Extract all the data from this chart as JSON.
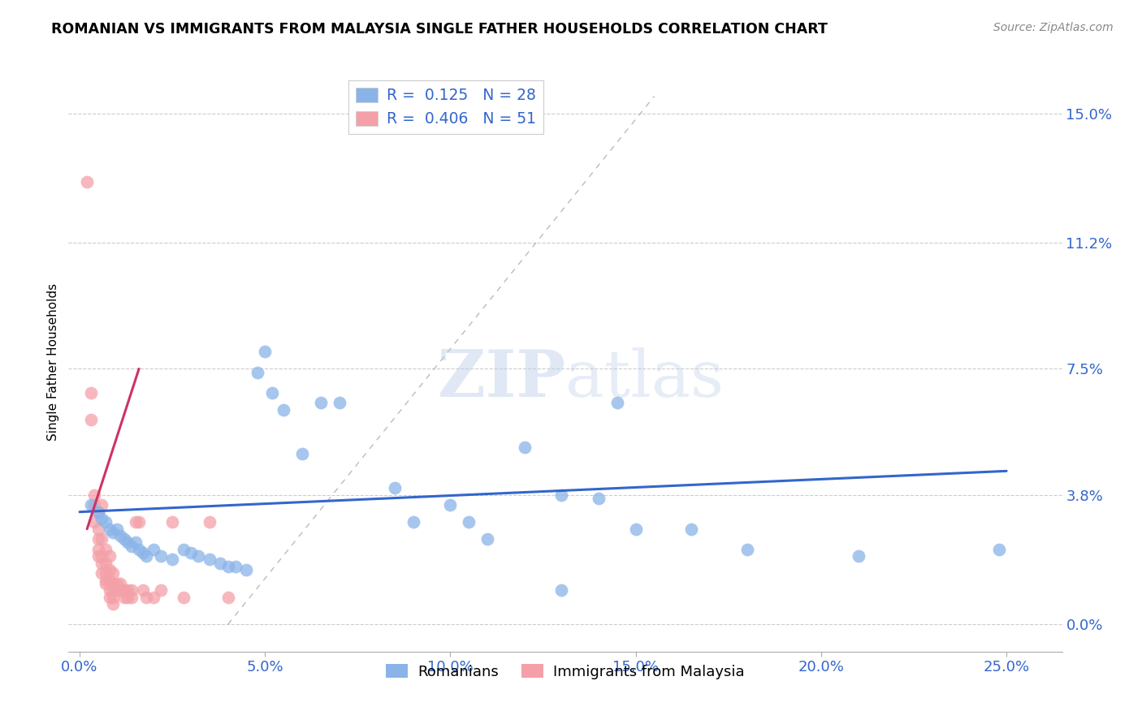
{
  "title": "ROMANIAN VS IMMIGRANTS FROM MALAYSIA SINGLE FATHER HOUSEHOLDS CORRELATION CHART",
  "source": "Source: ZipAtlas.com",
  "xlabel_ticks": [
    "0.0%",
    "5.0%",
    "10.0%",
    "15.0%",
    "20.0%",
    "25.0%"
  ],
  "xlabel_tick_vals": [
    0.0,
    0.05,
    0.1,
    0.15,
    0.2,
    0.25
  ],
  "ylabel": "Single Father Households",
  "ylabel_ticks": [
    "0.0%",
    "3.8%",
    "7.5%",
    "11.2%",
    "15.0%"
  ],
  "ylabel_tick_vals": [
    0.0,
    0.038,
    0.075,
    0.112,
    0.15
  ],
  "xlim": [
    -0.003,
    0.265
  ],
  "ylim": [
    -0.008,
    0.162
  ],
  "watermark_zip": "ZIP",
  "watermark_atlas": "atlas",
  "blue_color": "#8ab4e8",
  "pink_color": "#f4a0a8",
  "blue_line_color": "#3366cc",
  "pink_line_color": "#cc3366",
  "diagonal_color": "#cccccc",
  "blue_scatter": [
    [
      0.003,
      0.035
    ],
    [
      0.005,
      0.033
    ],
    [
      0.006,
      0.031
    ],
    [
      0.007,
      0.03
    ],
    [
      0.008,
      0.028
    ],
    [
      0.009,
      0.027
    ],
    [
      0.01,
      0.028
    ],
    [
      0.011,
      0.026
    ],
    [
      0.012,
      0.025
    ],
    [
      0.013,
      0.024
    ],
    [
      0.014,
      0.023
    ],
    [
      0.015,
      0.024
    ],
    [
      0.016,
      0.022
    ],
    [
      0.017,
      0.021
    ],
    [
      0.018,
      0.02
    ],
    [
      0.02,
      0.022
    ],
    [
      0.022,
      0.02
    ],
    [
      0.025,
      0.019
    ],
    [
      0.028,
      0.022
    ],
    [
      0.03,
      0.021
    ],
    [
      0.032,
      0.02
    ],
    [
      0.035,
      0.019
    ],
    [
      0.038,
      0.018
    ],
    [
      0.04,
      0.017
    ],
    [
      0.042,
      0.017
    ],
    [
      0.045,
      0.016
    ],
    [
      0.048,
      0.074
    ],
    [
      0.05,
      0.08
    ],
    [
      0.052,
      0.068
    ],
    [
      0.055,
      0.063
    ],
    [
      0.06,
      0.05
    ],
    [
      0.065,
      0.065
    ],
    [
      0.07,
      0.065
    ],
    [
      0.085,
      0.04
    ],
    [
      0.09,
      0.03
    ],
    [
      0.1,
      0.035
    ],
    [
      0.105,
      0.03
    ],
    [
      0.11,
      0.025
    ],
    [
      0.12,
      0.052
    ],
    [
      0.13,
      0.038
    ],
    [
      0.14,
      0.037
    ],
    [
      0.145,
      0.065
    ],
    [
      0.15,
      0.028
    ],
    [
      0.165,
      0.028
    ],
    [
      0.18,
      0.022
    ],
    [
      0.13,
      0.01
    ],
    [
      0.21,
      0.02
    ],
    [
      0.248,
      0.022
    ]
  ],
  "pink_scatter": [
    [
      0.002,
      0.13
    ],
    [
      0.003,
      0.068
    ],
    [
      0.003,
      0.06
    ],
    [
      0.004,
      0.038
    ],
    [
      0.004,
      0.035
    ],
    [
      0.004,
      0.03
    ],
    [
      0.005,
      0.033
    ],
    [
      0.005,
      0.028
    ],
    [
      0.005,
      0.025
    ],
    [
      0.005,
      0.022
    ],
    [
      0.005,
      0.02
    ],
    [
      0.006,
      0.035
    ],
    [
      0.006,
      0.025
    ],
    [
      0.006,
      0.02
    ],
    [
      0.006,
      0.018
    ],
    [
      0.006,
      0.015
    ],
    [
      0.007,
      0.022
    ],
    [
      0.007,
      0.018
    ],
    [
      0.007,
      0.015
    ],
    [
      0.007,
      0.013
    ],
    [
      0.007,
      0.012
    ],
    [
      0.008,
      0.02
    ],
    [
      0.008,
      0.016
    ],
    [
      0.008,
      0.013
    ],
    [
      0.008,
      0.01
    ],
    [
      0.008,
      0.008
    ],
    [
      0.009,
      0.015
    ],
    [
      0.009,
      0.012
    ],
    [
      0.009,
      0.01
    ],
    [
      0.009,
      0.008
    ],
    [
      0.009,
      0.006
    ],
    [
      0.01,
      0.012
    ],
    [
      0.01,
      0.01
    ],
    [
      0.011,
      0.012
    ],
    [
      0.011,
      0.01
    ],
    [
      0.012,
      0.01
    ],
    [
      0.012,
      0.008
    ],
    [
      0.013,
      0.01
    ],
    [
      0.013,
      0.008
    ],
    [
      0.014,
      0.01
    ],
    [
      0.014,
      0.008
    ],
    [
      0.015,
      0.03
    ],
    [
      0.016,
      0.03
    ],
    [
      0.017,
      0.01
    ],
    [
      0.018,
      0.008
    ],
    [
      0.02,
      0.008
    ],
    [
      0.022,
      0.01
    ],
    [
      0.025,
      0.03
    ],
    [
      0.028,
      0.008
    ],
    [
      0.035,
      0.03
    ],
    [
      0.04,
      0.008
    ]
  ],
  "blue_line_x": [
    0.0,
    0.25
  ],
  "blue_line_y": [
    0.033,
    0.045
  ],
  "pink_line_x": [
    0.002,
    0.016
  ],
  "pink_line_y": [
    0.028,
    0.075
  ]
}
